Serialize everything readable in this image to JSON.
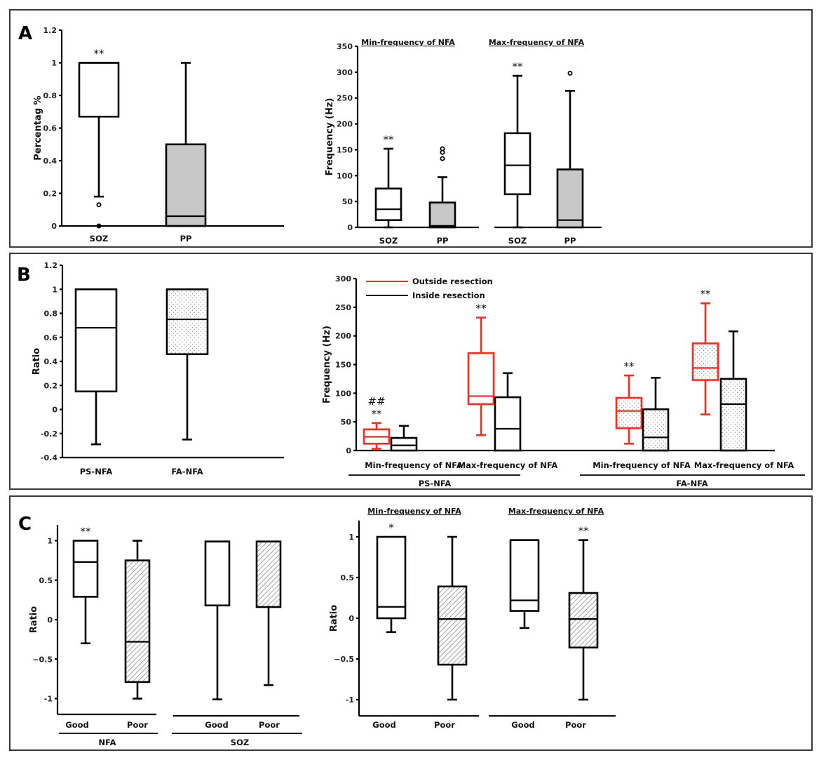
{
  "figure": {
    "colors": {
      "black": "#000000",
      "red": "#ff2a1a",
      "gray_fill": "#c8c8c8",
      "pattern_gray": "#9a9a9a"
    },
    "panels": [
      {
        "letter": "A"
      },
      {
        "letter": "B"
      },
      {
        "letter": "C"
      }
    ]
  },
  "chart_data": [
    {
      "id": "A-left",
      "panel": "A",
      "type": "boxplot",
      "ylabel": "Percentag %",
      "ylim": [
        0,
        1.2
      ],
      "yticks": [
        0,
        0.2,
        0.4,
        0.6,
        0.8,
        1,
        1.2
      ],
      "ytick_labels": [
        "0",
        "0.2",
        "0.4",
        "0.6",
        "0.8",
        "1",
        "1.2"
      ],
      "categories": [
        "SOZ",
        "PP"
      ],
      "boxes": [
        {
          "label": "SOZ",
          "whisker_low": 0.18,
          "q1": 0.67,
          "median": 1.0,
          "q3": 1.0,
          "whisker_high": 1.0,
          "outliers": [
            0.13,
            0.0
          ],
          "fill": "white",
          "sig": "**"
        },
        {
          "label": "PP",
          "whisker_low": 0.0,
          "q1": 0.0,
          "median": 0.06,
          "q3": 0.5,
          "whisker_high": 1.0,
          "outliers": [],
          "fill": "gray",
          "sig": ""
        }
      ]
    },
    {
      "id": "A-right",
      "panel": "A",
      "type": "boxplot",
      "ylabel": "Frequency (Hz)",
      "ylim": [
        0,
        350
      ],
      "yticks": [
        0,
        50,
        100,
        150,
        200,
        250,
        300,
        350
      ],
      "ytick_labels": [
        "0",
        "50",
        "100",
        "150",
        "200",
        "250",
        "300",
        "350"
      ],
      "groups": [
        {
          "title": "Min-frequency of NFA",
          "categories": [
            "SOZ",
            "PP"
          ]
        },
        {
          "title": "Max-frequency of NFA",
          "categories": [
            "SOZ",
            "PP"
          ]
        }
      ],
      "boxes": [
        {
          "group": "Min-frequency of NFA",
          "label": "SOZ",
          "whisker_low": 0,
          "q1": 14,
          "median": 35,
          "q3": 75,
          "whisker_high": 152,
          "outliers": [],
          "fill": "white",
          "sig": "**"
        },
        {
          "group": "Min-frequency of NFA",
          "label": "PP",
          "whisker_low": 0,
          "q1": 0,
          "median": 3,
          "q3": 48,
          "whisker_high": 97,
          "outliers": [
            133,
            145,
            152
          ],
          "fill": "gray",
          "sig": ""
        },
        {
          "group": "Max-frequency of NFA",
          "label": "SOZ",
          "whisker_low": 0,
          "q1": 64,
          "median": 120,
          "q3": 182,
          "whisker_high": 293,
          "outliers": [],
          "fill": "white",
          "sig": "**"
        },
        {
          "group": "Max-frequency of NFA",
          "label": "PP",
          "whisker_low": 0,
          "q1": 0,
          "median": 14,
          "q3": 112,
          "whisker_high": 264,
          "outliers": [
            298
          ],
          "fill": "gray",
          "sig": ""
        }
      ]
    },
    {
      "id": "B-left",
      "panel": "B",
      "type": "boxplot",
      "ylabel": "Ratio",
      "ylim": [
        -0.4,
        1.2
      ],
      "yticks": [
        -0.4,
        -0.2,
        0,
        0.2,
        0.4,
        0.6,
        0.8,
        1,
        1.2
      ],
      "ytick_labels": [
        "-0.4",
        "-0.2",
        "0",
        "0.2",
        "0.4",
        "0.6",
        "0.8",
        "1",
        "1.2"
      ],
      "categories": [
        "PS-NFA",
        "FA-NFA"
      ],
      "boxes": [
        {
          "label": "PS-NFA",
          "whisker_low": -0.29,
          "q1": 0.15,
          "median": 0.68,
          "q3": 1.0,
          "whisker_high": 1.0,
          "outliers": [],
          "fill": "white",
          "sig": ""
        },
        {
          "label": "FA-NFA",
          "whisker_low": -0.25,
          "q1": 0.46,
          "median": 0.75,
          "q3": 1.0,
          "whisker_high": 1.0,
          "outliers": [],
          "fill": "dots",
          "sig": ""
        }
      ]
    },
    {
      "id": "B-right",
      "panel": "B",
      "type": "boxplot",
      "ylabel": "Frequency (Hz)",
      "ylim": [
        0,
        300
      ],
      "yticks": [
        0,
        50,
        100,
        150,
        200,
        250,
        300
      ],
      "ytick_labels": [
        "0",
        "50",
        "100",
        "150",
        "200",
        "250",
        "300"
      ],
      "legend": {
        "position": "top-left",
        "entries": [
          {
            "label": "Outside resection",
            "color": "red"
          },
          {
            "label": "Inside   resection",
            "color": "black"
          }
        ]
      },
      "subcategories": [
        "Min-frequency of NFA",
        "Max-frequency of NFA",
        "Min-frequency of NFA",
        "Max-frequency of NFA"
      ],
      "groups": [
        "PS-NFA",
        "FA-NFA"
      ],
      "boxes": [
        {
          "group": "PS-NFA",
          "sub": "Min-frequency of NFA",
          "series": "Outside resection",
          "whisker_low": 3,
          "q1": 12,
          "median": 24,
          "q3": 37,
          "whisker_high": 48,
          "fill": "white",
          "sig": "**",
          "sig2": "##"
        },
        {
          "group": "PS-NFA",
          "sub": "Min-frequency of NFA",
          "series": "Inside resection",
          "whisker_low": 0,
          "q1": 0,
          "median": 9,
          "q3": 22,
          "whisker_high": 43,
          "fill": "white",
          "sig": ""
        },
        {
          "group": "PS-NFA",
          "sub": "Max-frequency of NFA",
          "series": "Outside resection",
          "whisker_low": 27,
          "q1": 81,
          "median": 95,
          "q3": 170,
          "whisker_high": 232,
          "fill": "white",
          "sig": "**"
        },
        {
          "group": "PS-NFA",
          "sub": "Max-frequency of NFA",
          "series": "Inside resection",
          "whisker_low": 0,
          "q1": 0,
          "median": 38,
          "q3": 93,
          "whisker_high": 135,
          "fill": "white",
          "sig": ""
        },
        {
          "group": "FA-NFA",
          "sub": "Min-frequency of NFA",
          "series": "Outside resection",
          "whisker_low": 12,
          "q1": 39,
          "median": 69,
          "q3": 92,
          "whisker_high": 131,
          "fill": "dots",
          "sig": "**"
        },
        {
          "group": "FA-NFA",
          "sub": "Min-frequency of NFA",
          "series": "Inside resection",
          "whisker_low": 0,
          "q1": 0,
          "median": 23,
          "q3": 72,
          "whisker_high": 127,
          "fill": "dots",
          "sig": ""
        },
        {
          "group": "FA-NFA",
          "sub": "Max-frequency of NFA",
          "series": "Outside resection",
          "whisker_low": 63,
          "q1": 123,
          "median": 144,
          "q3": 187,
          "whisker_high": 257,
          "fill": "dots",
          "sig": "**"
        },
        {
          "group": "FA-NFA",
          "sub": "Max-frequency of NFA",
          "series": "Inside resection",
          "whisker_low": 0,
          "q1": 0,
          "median": 81,
          "q3": 125,
          "whisker_high": 208,
          "fill": "dots",
          "sig": ""
        }
      ]
    },
    {
      "id": "C-left",
      "panel": "C",
      "type": "boxplot",
      "ylabel": "Ratio",
      "ylim": [
        -1.2,
        1.2
      ],
      "yticks": [
        -1,
        -0.5,
        0,
        0.5,
        1
      ],
      "ytick_labels": [
        "-1",
        "−0.5",
        "0",
        "0.5",
        "1"
      ],
      "groups": [
        {
          "title": "NFA",
          "categories": [
            "Good",
            "Poor"
          ]
        },
        {
          "title": "SOZ",
          "categories": [
            "Good",
            "Poor"
          ]
        }
      ],
      "boxes": [
        {
          "group": "NFA",
          "label": "Good",
          "whisker_low": -0.3,
          "q1": 0.29,
          "median": 0.73,
          "q3": 1.0,
          "whisker_high": 1.0,
          "fill": "white",
          "sig": "**"
        },
        {
          "group": "NFA",
          "label": "Poor",
          "whisker_low": -1.0,
          "q1": -0.79,
          "median": -0.28,
          "q3": 0.75,
          "whisker_high": 1.0,
          "fill": "hatch",
          "sig": ""
        },
        {
          "group": "SOZ",
          "label": "Good",
          "whisker_low": -1.01,
          "q1": 0.18,
          "median": 0.99,
          "q3": 0.99,
          "whisker_high": 0.99,
          "fill": "white",
          "sig": ""
        },
        {
          "group": "SOZ",
          "label": "Poor",
          "whisker_low": -0.83,
          "q1": 0.16,
          "median": 0.99,
          "q3": 0.99,
          "whisker_high": 0.99,
          "fill": "hatch",
          "sig": ""
        }
      ]
    },
    {
      "id": "C-right",
      "panel": "C",
      "type": "boxplot",
      "ylabel": "Ratio",
      "ylim": [
        -1.2,
        1.2
      ],
      "yticks": [
        -1,
        -0.5,
        0,
        0.5,
        1
      ],
      "ytick_labels": [
        "-1",
        "−0.5",
        "0",
        "0.5",
        "1"
      ],
      "groups": [
        {
          "title": "Min-frequency of NFA",
          "categories": [
            "Good",
            "Poor"
          ]
        },
        {
          "title": "Max-frequency of NFA",
          "categories": [
            "Good",
            "Poor"
          ]
        }
      ],
      "boxes": [
        {
          "group": "Min-frequency of NFA",
          "label": "Good",
          "whisker_low": -0.17,
          "q1": 0.0,
          "median": 0.14,
          "q3": 1.0,
          "whisker_high": 1.0,
          "fill": "white",
          "sig": "*"
        },
        {
          "group": "Min-frequency of NFA",
          "label": "Poor",
          "whisker_low": -1.0,
          "q1": -0.57,
          "median": -0.01,
          "q3": 0.39,
          "whisker_high": 1.0,
          "fill": "hatch",
          "sig": ""
        },
        {
          "group": "Max-frequency of NFA",
          "label": "Good",
          "whisker_low": -0.12,
          "q1": 0.09,
          "median": 0.22,
          "q3": 0.96,
          "whisker_high": 0.96,
          "fill": "white",
          "sig": ""
        },
        {
          "group": "Max-frequency of NFA",
          "label": "Poor",
          "whisker_low": -1.0,
          "q1": -0.36,
          "median": -0.01,
          "q3": 0.31,
          "whisker_high": 0.96,
          "fill": "hatch",
          "sig": "**"
        }
      ]
    }
  ]
}
